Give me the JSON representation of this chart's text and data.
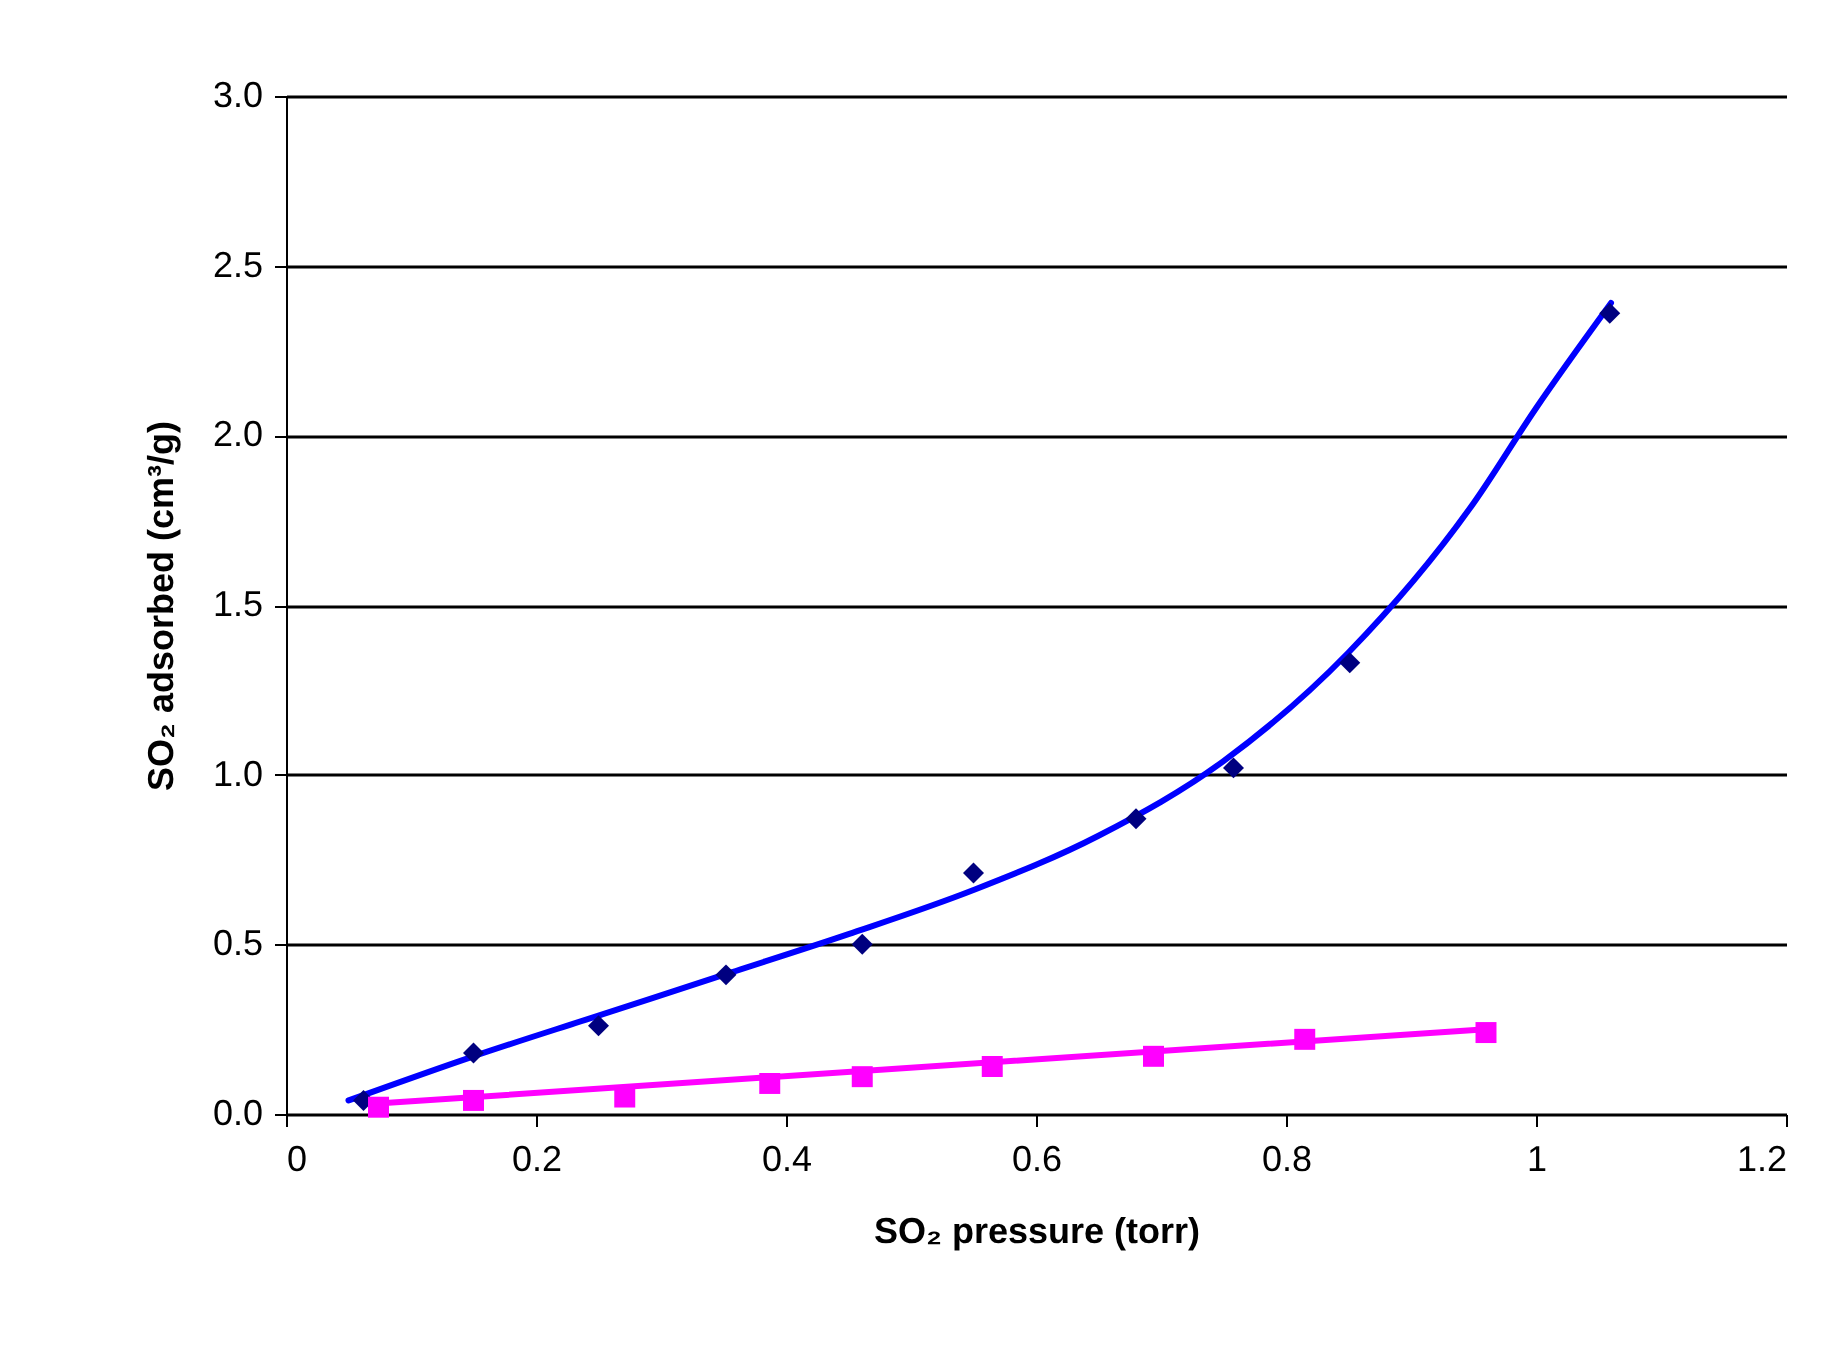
{
  "chart_data": {
    "type": "scatter",
    "xlabel": "SO₂ pressure (torr)",
    "ylabel": "SO₂ adsorbed (cm³/g)",
    "xlim": [
      0,
      1.2
    ],
    "xticks": [
      0,
      0.2,
      0.4,
      0.6,
      0.8,
      1,
      1.2
    ],
    "ylim": [
      0,
      3
    ],
    "yticks": [
      {
        "value": 0,
        "label": "0.0"
      },
      {
        "value": 0.5,
        "label": "0.5"
      },
      {
        "value": 1,
        "label": "1.0"
      },
      {
        "value": 1.5,
        "label": "1.5"
      },
      {
        "value": 2,
        "label": "2.0"
      },
      {
        "value": 2.5,
        "label": "2.5"
      },
      {
        "value": 3,
        "label": "3.0"
      }
    ],
    "grid": "y",
    "series": [
      {
        "type": "line",
        "color": "#0000ff",
        "marker": "none",
        "x": [
          0.05,
          0.15,
          0.25,
          0.35,
          0.45,
          0.55,
          0.65,
          0.75,
          0.85,
          0.95,
          1.0,
          1.06
        ],
        "values": [
          0.04,
          0.17,
          0.29,
          0.41,
          0.53,
          0.66,
          0.82,
          1.04,
          1.36,
          1.8,
          2.08,
          2.39
        ]
      },
      {
        "type": "line",
        "color": "#ff00ff",
        "marker": "none",
        "x": [
          0.07,
          0.96
        ],
        "values": [
          0.03,
          0.25
        ]
      },
      {
        "color": "#000080",
        "marker": "diamond",
        "x": [
          0.062,
          0.15,
          0.25,
          0.352,
          0.461,
          0.55,
          0.68,
          0.758,
          0.851,
          1.059
        ],
        "values": [
          0.04,
          0.18,
          0.26,
          0.41,
          0.5,
          0.71,
          0.87,
          1.02,
          1.33,
          2.36
        ]
      },
      {
        "color": "#ff00ff",
        "marker": "square",
        "x": [
          0.074,
          0.15,
          0.271,
          0.387,
          0.461,
          0.565,
          0.694,
          0.815,
          0.96
        ],
        "values": [
          0.02,
          0.04,
          0.05,
          0.09,
          0.11,
          0.14,
          0.17,
          0.22,
          0.24
        ]
      }
    ]
  }
}
